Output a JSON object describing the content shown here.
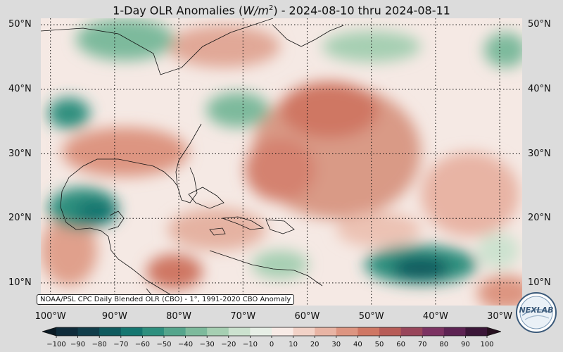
{
  "title_prefix": "1-Day OLR Anomalies (",
  "title_unit_main": "W/m",
  "title_unit_exp": "2",
  "title_suffix": ") - 2024-08-10 thru 2024-08-11",
  "source_note": "NOAA/PSL CPC Daily Blended OLR (CBO) - 1°, 1991-2020 CBO Anomaly",
  "lat_labels": [
    "50°N",
    "40°N",
    "30°N",
    "20°N",
    "10°N"
  ],
  "lat_values": [
    50,
    40,
    30,
    20,
    10
  ],
  "lon_labels": [
    "100°W",
    "90°W",
    "80°W",
    "70°W",
    "60°W",
    "50°W",
    "40°W",
    "30°W"
  ],
  "lon_values": [
    -100,
    -90,
    -80,
    -70,
    -60,
    -50,
    -40,
    -30
  ],
  "map_extent": {
    "lon_min": -101.5,
    "lon_max": -26.5,
    "lat_min": 6.5,
    "lat_max": 51
  },
  "colorbar": {
    "ticks": [
      "−100",
      "−90",
      "−80",
      "−70",
      "−60",
      "−50",
      "−40",
      "−30",
      "−20",
      "−10",
      "0",
      "10",
      "20",
      "30",
      "40",
      "50",
      "60",
      "70",
      "80",
      "90",
      "100"
    ],
    "tick_values": [
      -100,
      -90,
      -80,
      -70,
      -60,
      -50,
      -40,
      -30,
      -20,
      -10,
      0,
      10,
      20,
      30,
      40,
      50,
      60,
      70,
      80,
      90,
      100
    ],
    "colors_neg": [
      "#0f2b3a",
      "#113d4a",
      "#0f5a5e",
      "#157670",
      "#2e8f7e",
      "#55a58c",
      "#7dba9c",
      "#a6cfb2",
      "#cce2cf",
      "#e7efe6"
    ],
    "colors_pos": [
      "#f8ebe6",
      "#f2d2c7",
      "#e8b4a4",
      "#dd9581",
      "#cf7764",
      "#b75c57",
      "#98455a",
      "#7c3262",
      "#5d2353",
      "#3b1638"
    ]
  },
  "logo_text": "NEXLAB",
  "colors": {
    "background": "#dcdcdc",
    "gridline": "#111111",
    "coastline": "#111111"
  }
}
